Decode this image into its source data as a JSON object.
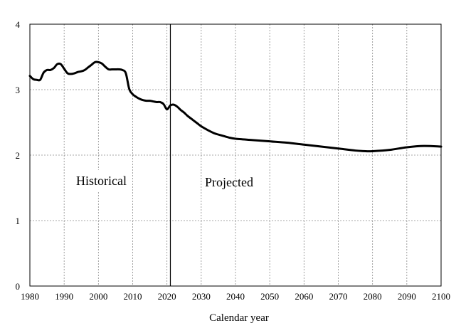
{
  "chart_data": {
    "type": "line",
    "title": "",
    "xlabel": "Calendar year",
    "ylabel": "",
    "xlim": [
      1980,
      2100
    ],
    "ylim": [
      0,
      4
    ],
    "x_ticks": [
      "1980",
      "1990",
      "2000",
      "2010",
      "2020",
      "2030",
      "2040",
      "2050",
      "2060",
      "2070",
      "2080",
      "2090",
      "2100"
    ],
    "y_ticks": [
      "0",
      "1",
      "2",
      "3",
      "4"
    ],
    "grid": true,
    "divider_year": 2021,
    "annotations": {
      "historical": "Historical",
      "projected": "Projected"
    },
    "series": [
      {
        "x": [
          1980,
          1981,
          1982,
          1983,
          1984,
          1985,
          1986,
          1987,
          1988,
          1989,
          1990,
          1991,
          1992,
          1993,
          1994,
          1995,
          1996,
          1997,
          1998,
          1999,
          2000,
          2001,
          2002,
          2003,
          2004,
          2005,
          2006,
          2007,
          2008,
          2009,
          2010,
          2011,
          2012,
          2013,
          2014,
          2015,
          2016,
          2017,
          2018,
          2019,
          2020,
          2021,
          2022,
          2023,
          2024,
          2025,
          2026,
          2027,
          2028,
          2029,
          2030,
          2032,
          2034,
          2036,
          2038,
          2040,
          2045,
          2050,
          2055,
          2060,
          2065,
          2070,
          2075,
          2078,
          2080,
          2085,
          2090,
          2095,
          2100
        ],
        "values": [
          3.21,
          3.16,
          3.15,
          3.15,
          3.26,
          3.3,
          3.3,
          3.33,
          3.39,
          3.39,
          3.32,
          3.25,
          3.24,
          3.25,
          3.27,
          3.28,
          3.3,
          3.34,
          3.38,
          3.42,
          3.42,
          3.4,
          3.35,
          3.31,
          3.31,
          3.31,
          3.31,
          3.3,
          3.25,
          3.01,
          2.93,
          2.89,
          2.86,
          2.84,
          2.83,
          2.83,
          2.82,
          2.81,
          2.81,
          2.78,
          2.7,
          2.76,
          2.77,
          2.74,
          2.69,
          2.65,
          2.6,
          2.56,
          2.52,
          2.48,
          2.44,
          2.38,
          2.33,
          2.3,
          2.27,
          2.25,
          2.23,
          2.21,
          2.19,
          2.16,
          2.13,
          2.1,
          2.07,
          2.06,
          2.06,
          2.08,
          2.12,
          2.14,
          2.13
        ]
      }
    ]
  }
}
